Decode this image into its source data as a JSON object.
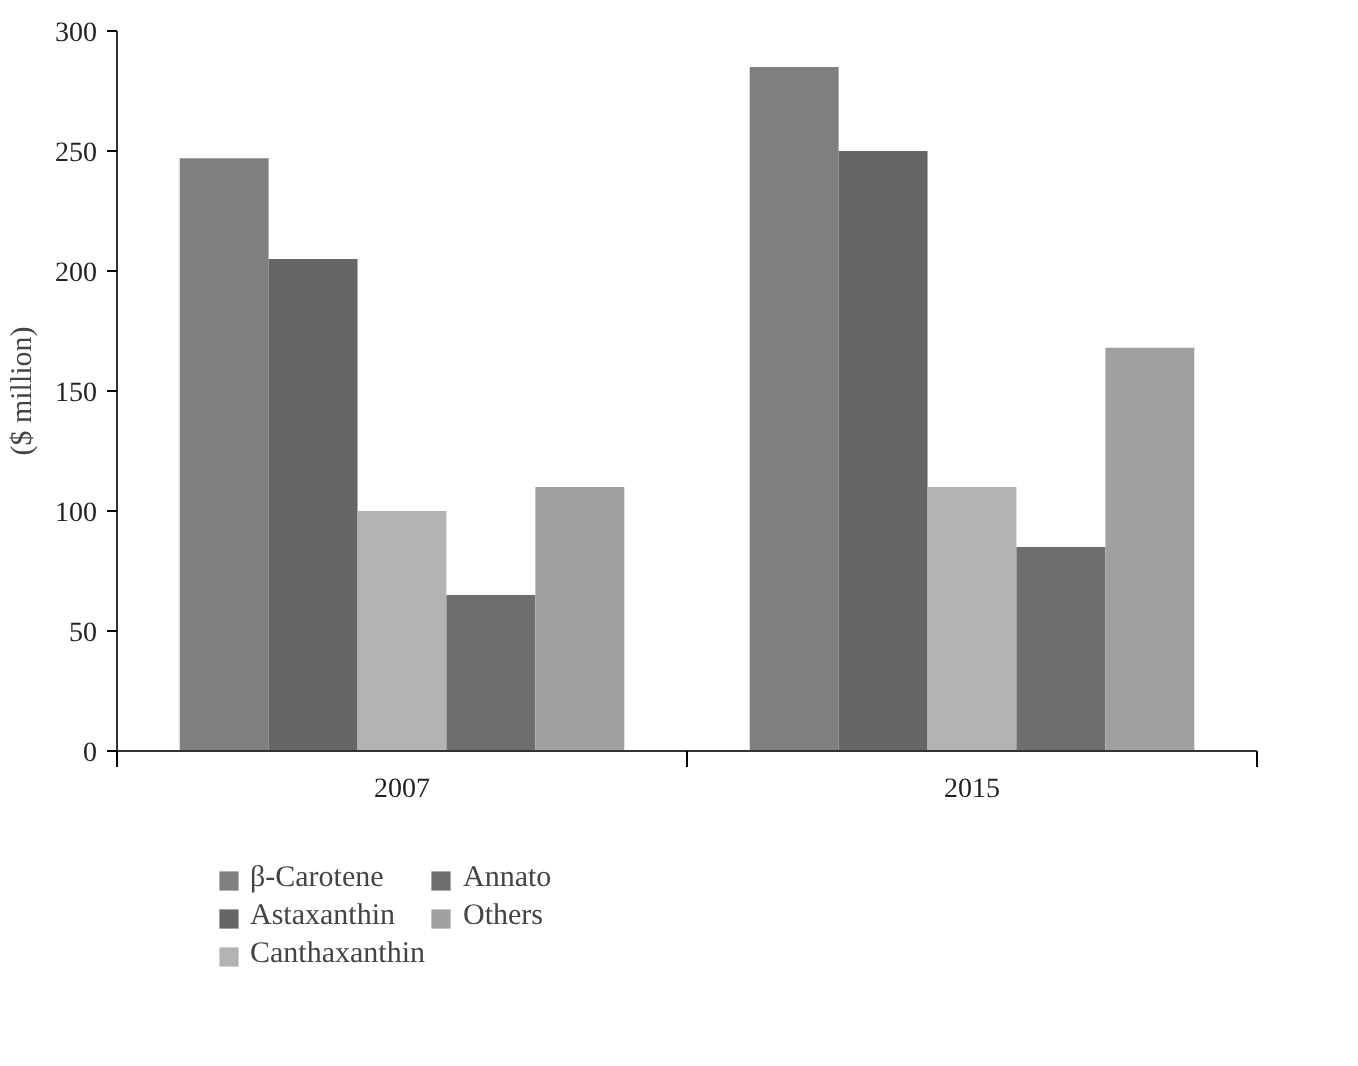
{
  "chart_data": {
    "type": "bar",
    "ylabel": "($ million)",
    "categories": [
      "2007",
      "2015"
    ],
    "series": [
      {
        "name": "β-Carotene",
        "color": "#7f7f7f",
        "values": [
          247,
          285
        ]
      },
      {
        "name": "Astaxanthin",
        "color": "#666666",
        "values": [
          205,
          250
        ]
      },
      {
        "name": "Canthaxanthin",
        "color": "#b3b3b3",
        "values": [
          100,
          110
        ]
      },
      {
        "name": "Annato",
        "color": "#6e6e6e",
        "values": [
          65,
          85
        ]
      },
      {
        "name": "Others",
        "color": "#a0a0a0",
        "values": [
          110,
          168
        ]
      }
    ],
    "ylim": [
      0,
      300
    ],
    "yticks": [
      0,
      50,
      100,
      150,
      200,
      250,
      300
    ],
    "grid": false,
    "legend": "bottom"
  }
}
